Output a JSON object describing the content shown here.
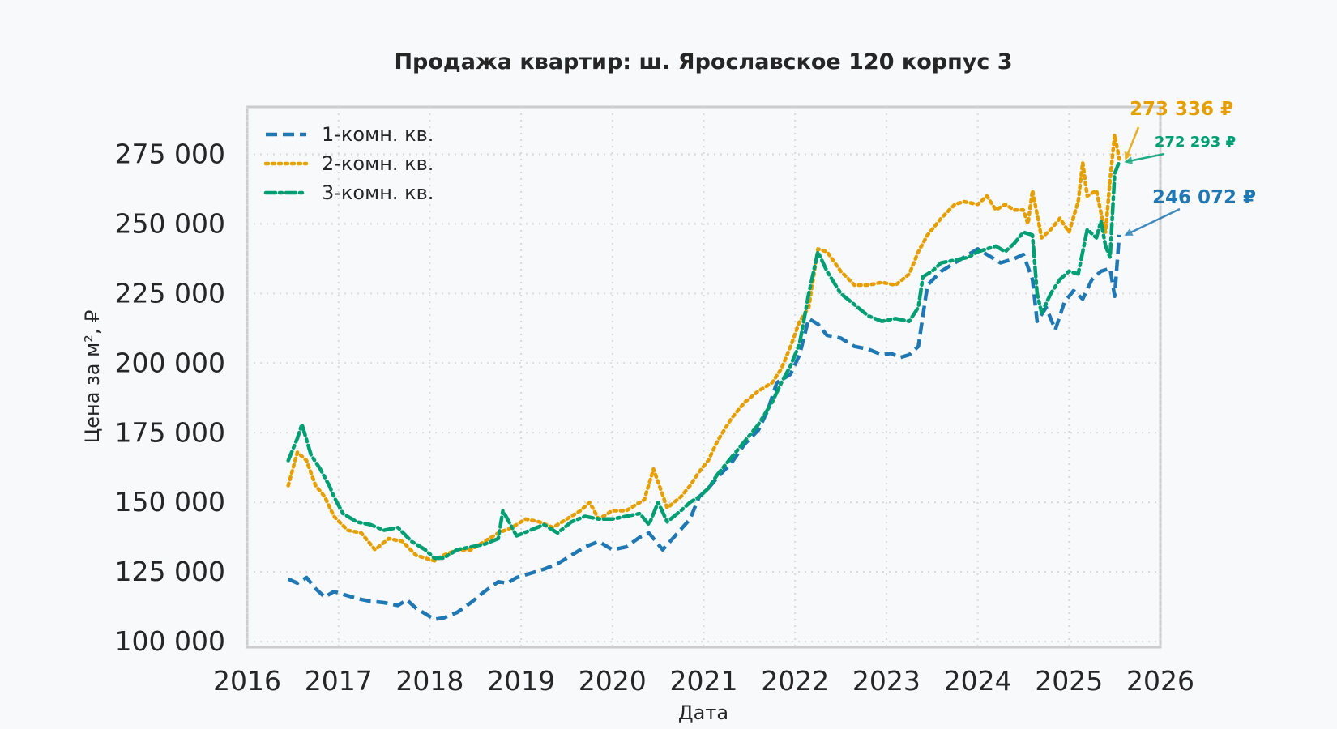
{
  "chart_data": {
    "type": "line",
    "title": "Продажа квартир: ш. Ярославское 120 корпус 3",
    "xlabel": "Дата",
    "ylabel": "Цена за м², ₽",
    "xlim": [
      2016.0,
      2026.0
    ],
    "ylim": [
      98000,
      292000
    ],
    "x_ticks": [
      "2016",
      "2017",
      "2018",
      "2019",
      "2020",
      "2021",
      "2022",
      "2023",
      "2024",
      "2025",
      "2026"
    ],
    "y_ticks": [
      "100 000",
      "125 000",
      "150 000",
      "175 000",
      "200 000",
      "225 000",
      "250 000",
      "275 000"
    ],
    "grid": true,
    "legend_position": "top-left",
    "series": [
      {
        "name": "1-комн. кв.",
        "color": "#1f78b4",
        "style": "dashed",
        "x": [
          2016.45,
          2016.55,
          2016.65,
          2016.75,
          2016.85,
          2016.95,
          2017.05,
          2017.2,
          2017.35,
          2017.5,
          2017.65,
          2017.75,
          2017.85,
          2017.95,
          2018.05,
          2018.15,
          2018.3,
          2018.45,
          2018.6,
          2018.75,
          2018.85,
          2018.95,
          2019.1,
          2019.25,
          2019.4,
          2019.55,
          2019.7,
          2019.85,
          2020.0,
          2020.15,
          2020.3,
          2020.4,
          2020.55,
          2020.7,
          2020.85,
          2020.95,
          2021.05,
          2021.15,
          2021.3,
          2021.45,
          2021.6,
          2021.7,
          2021.8,
          2021.95,
          2022.05,
          2022.15,
          2022.25,
          2022.35,
          2022.5,
          2022.65,
          2022.8,
          2022.95,
          2023.05,
          2023.15,
          2023.25,
          2023.35,
          2023.45,
          2023.6,
          2023.75,
          2023.9,
          2024.0,
          2024.1,
          2024.25,
          2024.4,
          2024.5,
          2024.6,
          2024.65,
          2024.75,
          2024.85,
          2024.95,
          2025.05,
          2025.15,
          2025.25,
          2025.35,
          2025.45,
          2025.5,
          2025.55
        ],
        "y": [
          122500,
          121000,
          123000,
          119000,
          116000,
          118000,
          117000,
          115500,
          114500,
          114000,
          113000,
          115000,
          112000,
          110000,
          108000,
          108500,
          110500,
          114000,
          118000,
          121500,
          121000,
          123000,
          124500,
          126000,
          128000,
          131000,
          134000,
          136000,
          133000,
          134000,
          137500,
          139000,
          133000,
          138500,
          144000,
          152000,
          155000,
          159000,
          164000,
          171000,
          176000,
          183000,
          193000,
          196000,
          203000,
          216000,
          214000,
          210000,
          209000,
          206000,
          205000,
          203000,
          203500,
          202000,
          203000,
          206000,
          228000,
          233000,
          236000,
          239000,
          241000,
          239000,
          236000,
          237500,
          239000,
          230000,
          215000,
          220000,
          212000,
          222000,
          226000,
          223000,
          230000,
          233000,
          234000,
          224000,
          246072
        ]
      },
      {
        "name": "2-комн. кв.",
        "color": "#e69f00",
        "style": "dotted",
        "x": [
          2016.45,
          2016.55,
          2016.65,
          2016.75,
          2016.85,
          2016.95,
          2017.1,
          2017.25,
          2017.4,
          2017.55,
          2017.7,
          2017.85,
          2017.95,
          2018.05,
          2018.15,
          2018.3,
          2018.45,
          2018.6,
          2018.75,
          2018.9,
          2019.05,
          2019.2,
          2019.35,
          2019.5,
          2019.65,
          2019.75,
          2019.85,
          2020.0,
          2020.15,
          2020.25,
          2020.35,
          2020.45,
          2020.6,
          2020.75,
          2020.85,
          2020.95,
          2021.05,
          2021.15,
          2021.3,
          2021.45,
          2021.6,
          2021.75,
          2021.85,
          2021.95,
          2022.05,
          2022.15,
          2022.25,
          2022.35,
          2022.5,
          2022.65,
          2022.8,
          2022.95,
          2023.1,
          2023.25,
          2023.35,
          2023.45,
          2023.6,
          2023.75,
          2023.85,
          2024.0,
          2024.1,
          2024.2,
          2024.3,
          2024.4,
          2024.5,
          2024.55,
          2024.6,
          2024.7,
          2024.8,
          2024.9,
          2025.0,
          2025.1,
          2025.15,
          2025.2,
          2025.3,
          2025.35,
          2025.4,
          2025.45,
          2025.5,
          2025.55
        ],
        "y": [
          156000,
          168000,
          165000,
          156000,
          152000,
          145000,
          140000,
          139000,
          133000,
          137000,
          136000,
          131000,
          130000,
          129000,
          131000,
          133000,
          133000,
          136000,
          139000,
          141000,
          144000,
          143000,
          141000,
          144000,
          147000,
          150000,
          144000,
          147000,
          147000,
          149000,
          151000,
          162000,
          148000,
          152000,
          156000,
          161000,
          165000,
          172000,
          180000,
          186000,
          190000,
          193000,
          198000,
          206000,
          215000,
          220000,
          241000,
          240000,
          233000,
          228000,
          228000,
          229000,
          228000,
          232000,
          240000,
          246000,
          252000,
          257000,
          258000,
          257000,
          260000,
          255000,
          257000,
          255000,
          255000,
          250000,
          262000,
          245000,
          248000,
          252000,
          247000,
          258000,
          272000,
          260000,
          262000,
          254000,
          247000,
          266000,
          282000,
          273336
        ]
      },
      {
        "name": "3-комн. кв.",
        "color": "#009e73",
        "style": "dashdot",
        "x": [
          2016.45,
          2016.55,
          2016.6,
          2016.7,
          2016.8,
          2016.9,
          2016.95,
          2017.05,
          2017.2,
          2017.35,
          2017.5,
          2017.65,
          2017.8,
          2017.95,
          2018.05,
          2018.15,
          2018.3,
          2018.45,
          2018.6,
          2018.75,
          2018.8,
          2018.95,
          2019.1,
          2019.25,
          2019.4,
          2019.55,
          2019.7,
          2019.85,
          2020.0,
          2020.15,
          2020.3,
          2020.4,
          2020.5,
          2020.6,
          2020.75,
          2020.85,
          2020.95,
          2021.05,
          2021.15,
          2021.3,
          2021.45,
          2021.6,
          2021.75,
          2021.85,
          2021.95,
          2022.05,
          2022.15,
          2022.25,
          2022.35,
          2022.5,
          2022.65,
          2022.8,
          2022.95,
          2023.1,
          2023.25,
          2023.35,
          2023.4,
          2023.5,
          2023.6,
          2023.75,
          2023.9,
          2024.0,
          2024.1,
          2024.2,
          2024.3,
          2024.4,
          2024.5,
          2024.6,
          2024.65,
          2024.7,
          2024.8,
          2024.9,
          2025.0,
          2025.1,
          2025.2,
          2025.3,
          2025.35,
          2025.4,
          2025.45,
          2025.5,
          2025.55
        ],
        "y": [
          165000,
          173000,
          178000,
          167000,
          162000,
          156000,
          152000,
          146000,
          143000,
          142000,
          140000,
          141000,
          136000,
          133000,
          130000,
          130000,
          133000,
          134000,
          135000,
          137000,
          147000,
          138000,
          140000,
          142000,
          139000,
          143000,
          145000,
          144000,
          144000,
          145000,
          146000,
          142000,
          150000,
          143000,
          147000,
          150000,
          152000,
          155000,
          160000,
          166000,
          172000,
          178000,
          186000,
          193000,
          199000,
          207000,
          225000,
          240000,
          233000,
          225000,
          221000,
          217000,
          215000,
          216000,
          215000,
          220000,
          231000,
          233000,
          236000,
          237000,
          238000,
          240000,
          241000,
          242000,
          240000,
          243000,
          247000,
          246000,
          225000,
          218000,
          225000,
          230000,
          233000,
          232000,
          248000,
          245000,
          251000,
          242000,
          238000,
          268000,
          272293
        ]
      }
    ],
    "annotations": [
      {
        "text": "273 336 ₽",
        "color": "#e69f00",
        "x": 2025.55,
        "y": 273336
      },
      {
        "text": "272 293 ₽",
        "color": "#009e73",
        "x": 2025.55,
        "y": 272293
      },
      {
        "text": "246 072 ₽",
        "color": "#1f78b4",
        "x": 2025.55,
        "y": 246072
      }
    ]
  }
}
